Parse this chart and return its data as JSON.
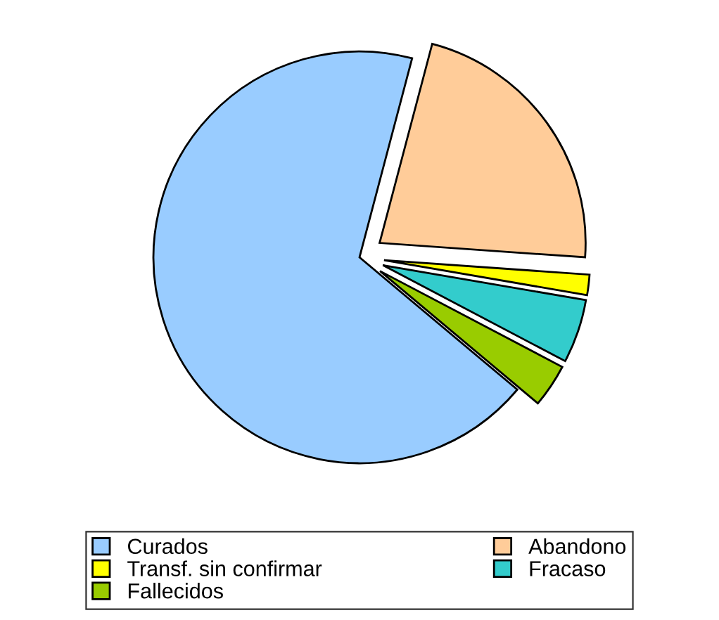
{
  "chart_data": {
    "type": "pie",
    "categories": [
      "Curados",
      "Abandono",
      "Transf. sin confirmar",
      "Fracaso",
      "Fallecidos"
    ],
    "values": [
      68,
      22,
      1.6,
      5,
      3.4
    ],
    "colors": [
      "#99ccff",
      "#ffcc99",
      "#ffff00",
      "#33cccc",
      "#99cc00"
    ],
    "legend": "bottom"
  }
}
